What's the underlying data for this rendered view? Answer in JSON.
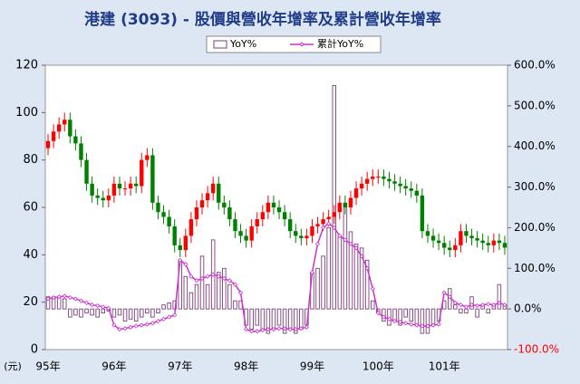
{
  "chart_data": {
    "type": "candlestick",
    "title": "港建 (3093) - 股價與營收年增率及累計營收年增率",
    "y_unit_label": "(元)",
    "categories": [
      "95年",
      null,
      null,
      null,
      null,
      null,
      null,
      null,
      null,
      null,
      null,
      null,
      "96年",
      null,
      null,
      null,
      null,
      null,
      null,
      null,
      null,
      null,
      null,
      null,
      "97年",
      null,
      null,
      null,
      null,
      null,
      null,
      null,
      null,
      null,
      null,
      null,
      "98年",
      null,
      null,
      null,
      null,
      null,
      null,
      null,
      null,
      null,
      null,
      null,
      "99年",
      null,
      null,
      null,
      null,
      null,
      null,
      null,
      null,
      null,
      null,
      null,
      "100年",
      null,
      null,
      null,
      null,
      null,
      null,
      null,
      null,
      null,
      null,
      null,
      "101年",
      null,
      null,
      null,
      null,
      null,
      null,
      null,
      null,
      null,
      null,
      null
    ],
    "price": {
      "up_color": "#ff0000",
      "down_color": "#008000",
      "open": [
        85,
        88,
        92,
        95,
        97,
        90,
        87,
        80,
        70,
        65,
        64,
        63,
        65,
        70,
        68,
        68,
        70,
        69,
        80,
        82,
        62,
        58,
        56,
        52,
        44,
        42,
        48,
        55,
        60,
        63,
        66,
        70,
        62,
        60,
        55,
        50,
        48,
        46,
        52,
        55,
        58,
        62,
        60,
        58,
        55,
        50,
        48,
        47,
        48,
        52,
        53,
        55,
        56,
        58,
        62,
        60,
        64,
        68,
        70,
        72,
        73,
        73,
        72,
        71,
        70,
        69,
        68,
        67,
        65,
        50,
        48,
        46,
        45,
        43,
        42,
        44,
        50,
        48,
        47,
        46,
        45,
        44,
        46,
        45
      ],
      "high": [
        91,
        95,
        98,
        100,
        100,
        93,
        90,
        83,
        73,
        68,
        67,
        68,
        73,
        73,
        71,
        73,
        73,
        83,
        85,
        85,
        65,
        61,
        59,
        55,
        47,
        51,
        58,
        63,
        66,
        69,
        73,
        73,
        65,
        63,
        58,
        53,
        51,
        55,
        58,
        61,
        65,
        65,
        63,
        61,
        58,
        53,
        51,
        51,
        55,
        56,
        58,
        59,
        61,
        65,
        65,
        67,
        71,
        73,
        75,
        76,
        76,
        76,
        75,
        74,
        73,
        72,
        71,
        70,
        68,
        53,
        51,
        49,
        48,
        46,
        47,
        53,
        53,
        51,
        50,
        49,
        48,
        49,
        49,
        48
      ],
      "low": [
        82,
        85,
        89,
        92,
        87,
        84,
        77,
        67,
        62,
        61,
        60,
        60,
        62,
        65,
        65,
        65,
        66,
        66,
        77,
        59,
        55,
        53,
        49,
        41,
        39,
        39,
        45,
        52,
        57,
        60,
        63,
        59,
        57,
        52,
        47,
        45,
        43,
        43,
        49,
        52,
        55,
        57,
        55,
        52,
        47,
        45,
        44,
        44,
        45,
        49,
        50,
        52,
        53,
        55,
        57,
        57,
        61,
        65,
        67,
        69,
        70,
        69,
        68,
        67,
        66,
        65,
        64,
        62,
        47,
        45,
        43,
        42,
        40,
        39,
        39,
        41,
        45,
        44,
        43,
        42,
        41,
        41,
        42,
        40
      ],
      "close": [
        88,
        92,
        95,
        97,
        90,
        87,
        80,
        70,
        65,
        64,
        63,
        65,
        70,
        68,
        68,
        70,
        69,
        80,
        82,
        62,
        58,
        56,
        52,
        44,
        42,
        48,
        55,
        60,
        63,
        66,
        70,
        62,
        60,
        55,
        50,
        48,
        46,
        52,
        55,
        58,
        62,
        60,
        58,
        55,
        50,
        48,
        47,
        48,
        52,
        53,
        55,
        56,
        58,
        62,
        60,
        64,
        68,
        70,
        72,
        73,
        73,
        72,
        71,
        70,
        69,
        68,
        67,
        65,
        50,
        48,
        46,
        45,
        43,
        42,
        44,
        50,
        48,
        47,
        46,
        45,
        44,
        46,
        45,
        43
      ]
    },
    "series": [
      {
        "name": "YoY%",
        "type": "bar",
        "axis": "y2",
        "color": "#7b3f7b",
        "values": [
          30,
          30,
          30,
          25,
          -20,
          -15,
          -20,
          -10,
          -15,
          -20,
          -10,
          -5,
          -20,
          -15,
          -30,
          -25,
          -30,
          -20,
          -10,
          -20,
          -10,
          10,
          15,
          20,
          120,
          80,
          40,
          60,
          130,
          60,
          170,
          90,
          100,
          60,
          20,
          20,
          -40,
          -50,
          -40,
          -50,
          -60,
          -50,
          -40,
          -60,
          -50,
          -60,
          -50,
          -40,
          90,
          100,
          130,
          200,
          550,
          180,
          260,
          190,
          160,
          150,
          120,
          20,
          -10,
          -30,
          -40,
          -30,
          -40,
          -20,
          -30,
          -40,
          -60,
          -60,
          -40,
          -30,
          20,
          50,
          10,
          -10,
          -10,
          30,
          -20,
          10,
          -10,
          10,
          60,
          10
        ]
      },
      {
        "name": "累計YoY%",
        "type": "line",
        "axis": "y2",
        "color": "#cc33cc",
        "values": [
          25,
          28,
          30,
          32,
          28,
          25,
          20,
          15,
          10,
          8,
          5,
          2,
          -40,
          -50,
          -48,
          -45,
          -42,
          -40,
          -38,
          -35,
          -30,
          -25,
          -20,
          -15,
          120,
          110,
          80,
          70,
          75,
          80,
          85,
          80,
          75,
          70,
          60,
          40,
          -50,
          -55,
          -55,
          -52,
          -50,
          -50,
          -48,
          -48,
          -50,
          -50,
          -48,
          -45,
          90,
          160,
          200,
          210,
          200,
          180,
          170,
          160,
          150,
          130,
          100,
          50,
          -10,
          -20,
          -25,
          -30,
          -32,
          -35,
          -38,
          -40,
          -42,
          -42,
          -40,
          -38,
          40,
          30,
          15,
          10,
          5,
          10,
          8,
          10,
          12,
          10,
          15,
          10
        ]
      }
    ],
    "ylim": [
      0,
      120
    ],
    "yticks": [
      0,
      20,
      40,
      60,
      80,
      100,
      120
    ],
    "y2lim": [
      -100,
      600
    ],
    "y2ticks": [
      {
        "value": -100,
        "label": "-100.0%"
      },
      {
        "value": 0,
        "label": "0.0%"
      },
      {
        "value": 100,
        "label": "100.0%"
      },
      {
        "value": 200,
        "label": "200.0%"
      },
      {
        "value": 300,
        "label": "300.0%"
      },
      {
        "value": 400,
        "label": "400.0%"
      },
      {
        "value": 500,
        "label": "500.0%"
      },
      {
        "value": 600,
        "label": "600.0%"
      }
    ],
    "y2_negative_tick_color": "#ff0000",
    "legend": "top"
  }
}
